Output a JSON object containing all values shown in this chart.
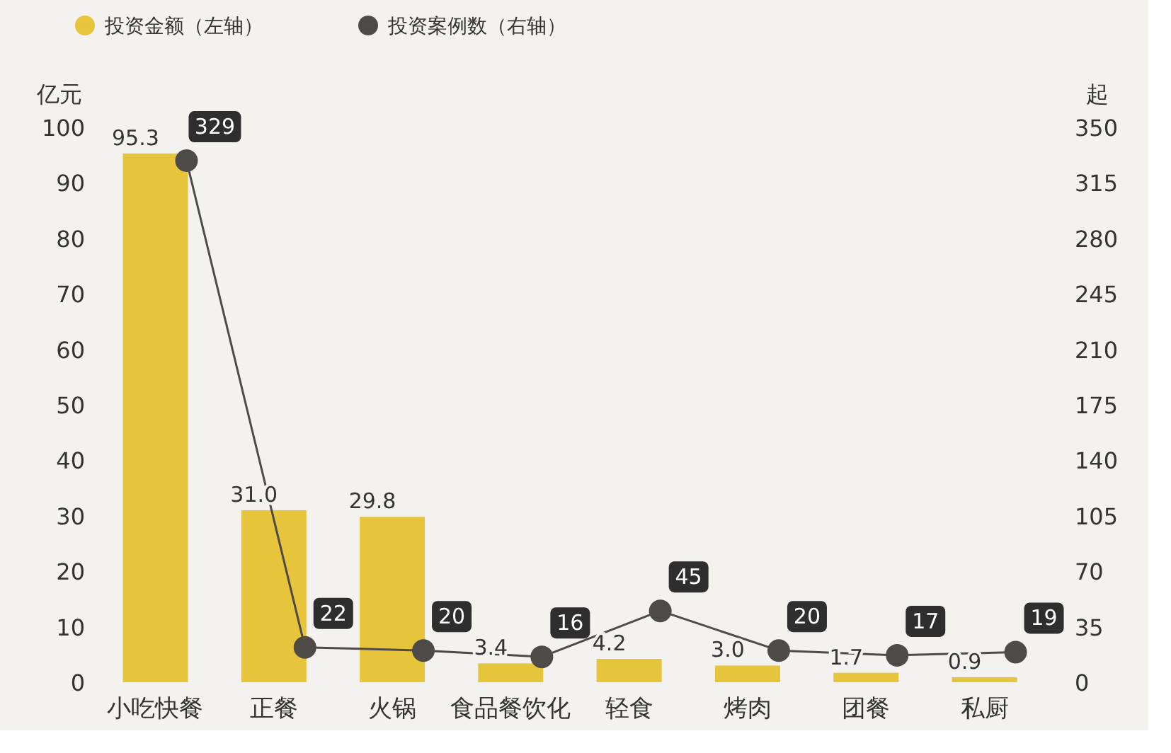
{
  "chart_data": {
    "type": "bar",
    "categories": [
      "小吃快餐",
      "正餐",
      "火锅",
      "食品餐饮化",
      "轻食",
      "烤肉",
      "团餐",
      "私厨"
    ],
    "series": [
      {
        "name": "投资金额（左轴）",
        "color": "#e6c43c",
        "values": [
          95.3,
          31.0,
          29.8,
          3.4,
          4.2,
          3.0,
          1.7,
          0.9
        ],
        "value_labels": [
          "95.3",
          "31.0",
          "29.8",
          "3.4",
          "4.2",
          "3.0",
          "1.7",
          "0.9"
        ]
      },
      {
        "name": "投资案例数（右轴）",
        "type": "line",
        "axis": "y2",
        "color": "#4d4a48",
        "marker": "circle",
        "values": [
          329,
          22,
          20,
          16,
          45,
          20,
          17,
          19
        ],
        "value_labels": [
          "329",
          "22",
          "20",
          "16",
          "45",
          "20",
          "17",
          "19"
        ]
      }
    ],
    "ylabel": "亿元",
    "y2label": "起",
    "ylim": [
      0,
      100
    ],
    "yticks": [
      0,
      10,
      20,
      30,
      40,
      50,
      60,
      70,
      80,
      90,
      100
    ],
    "y2lim": [
      0,
      350
    ],
    "y2ticks": [
      0,
      35,
      70,
      105,
      140,
      175,
      210,
      245,
      280,
      315,
      350
    ],
    "legend": "top left",
    "grid": false
  }
}
